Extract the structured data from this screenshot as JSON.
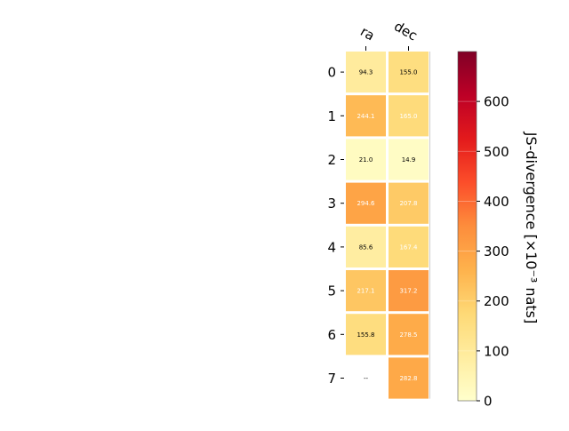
{
  "chart_data": {
    "type": "heatmap",
    "columns": [
      "ra",
      "dec"
    ],
    "rows": [
      "0",
      "1",
      "2",
      "3",
      "4",
      "5",
      "6",
      "7"
    ],
    "values": [
      [
        94.3,
        155.0
      ],
      [
        244.1,
        165.0
      ],
      [
        21.0,
        14.9
      ],
      [
        294.6,
        207.8
      ],
      [
        85.6,
        167.4
      ],
      [
        217.1,
        317.2
      ],
      [
        155.8,
        278.5
      ],
      [
        null,
        282.8
      ]
    ],
    "cell_labels": [
      [
        "94.3",
        "155.0"
      ],
      [
        "244.1",
        "165.0"
      ],
      [
        "21.0",
        "14.9"
      ],
      [
        "294.6",
        "207.8"
      ],
      [
        "85.6",
        "167.4"
      ],
      [
        "217.1",
        "317.2"
      ],
      [
        "155.8",
        "278.5"
      ],
      [
        "--",
        "282.8"
      ]
    ],
    "colorbar": {
      "label": "JS-divergence [×10⁻³ nats]",
      "range": [
        0,
        700
      ],
      "ticks": [
        0,
        100,
        200,
        300,
        400,
        500,
        600
      ],
      "tick_labels": [
        "0",
        "100",
        "200",
        "300",
        "400",
        "500",
        "600"
      ],
      "colormap": "YlOrRd",
      "colors": [
        "#ffffcc",
        "#ffeda0",
        "#fed976",
        "#feb24c",
        "#fd8d3c",
        "#fc4e2a",
        "#e31a1c",
        "#bd0026",
        "#800026"
      ]
    },
    "text_colors": {
      "dark": "#000000",
      "light": "#ffffff"
    }
  }
}
